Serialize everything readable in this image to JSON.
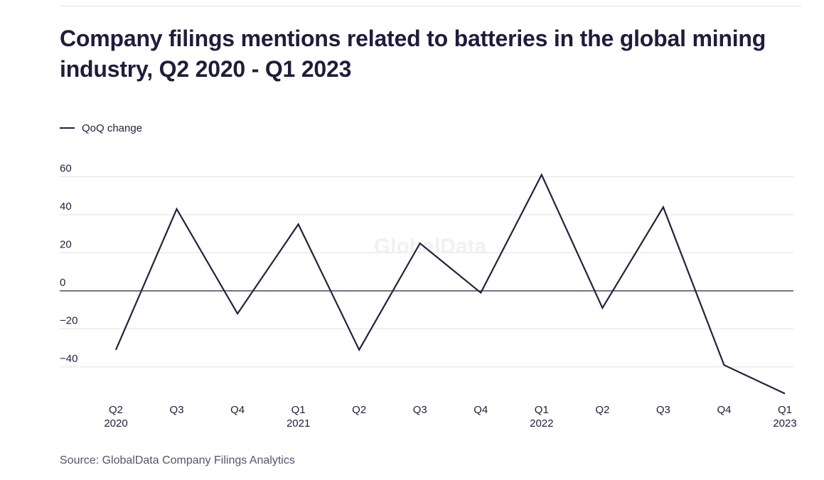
{
  "title": "Company filings mentions related to batteries in the global mining industry, Q2 2020 - Q1 2023",
  "source": "Source: GlobalData Company Filings Analytics",
  "watermark": "GlobalData",
  "colors": {
    "line": "#24213f",
    "grid": "#e3e3e3",
    "zero_line": "#24213f",
    "text": "#1f1d3a"
  },
  "chart_data": {
    "type": "line",
    "categories": [
      "Q2\n2020",
      "Q3",
      "Q4",
      "Q1\n2021",
      "Q2",
      "Q3",
      "Q4",
      "Q1\n2022",
      "Q2",
      "Q3",
      "Q4",
      "Q1\n2023"
    ],
    "series": [
      {
        "name": "QoQ change",
        "values": [
          -31,
          43,
          -12,
          35,
          -31,
          25,
          -1,
          61,
          -9,
          44,
          -39,
          -54
        ]
      }
    ],
    "yticks": [
      -40,
      -20,
      0,
      20,
      40,
      60
    ],
    "ytick_labels": [
      "−40",
      "−20",
      "0",
      "20",
      "40",
      "60"
    ],
    "ylim": [
      -55,
      62
    ],
    "grid": true,
    "legend_position": "top-left"
  }
}
